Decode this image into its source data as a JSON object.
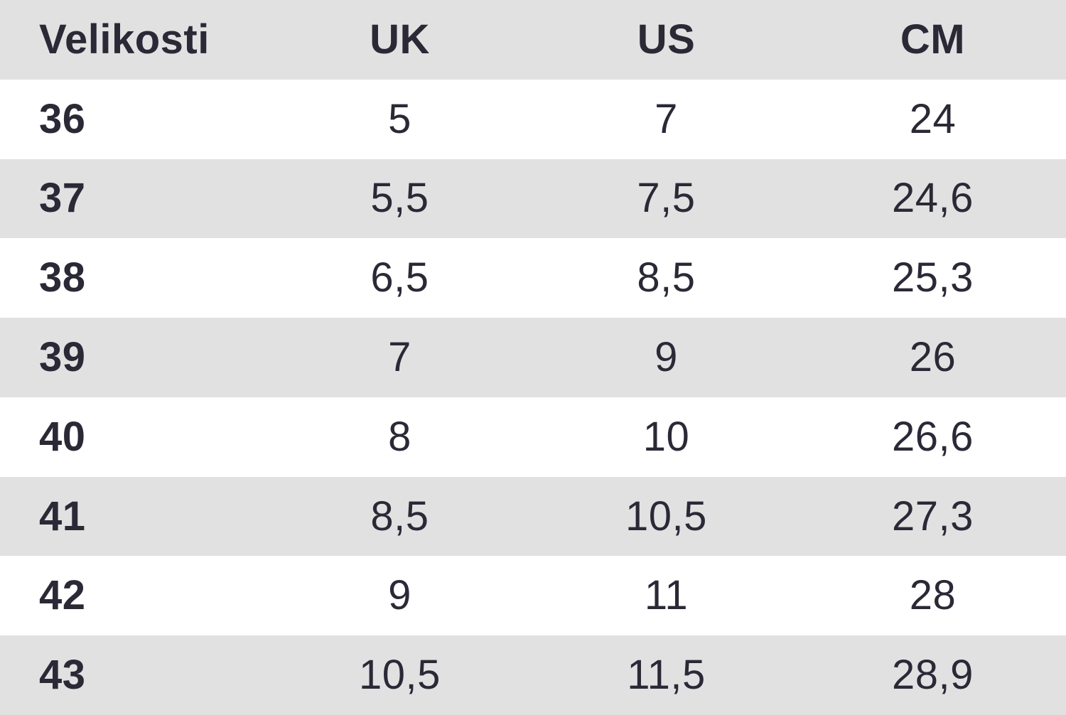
{
  "table": {
    "header": {
      "size_label": "Velikosti",
      "uk_label": "UK",
      "us_label": "US",
      "cm_label": "CM"
    },
    "rows": [
      {
        "size": "36",
        "uk": "5",
        "us": "7",
        "cm": "24"
      },
      {
        "size": "37",
        "uk": "5,5",
        "us": "7,5",
        "cm": "24,6"
      },
      {
        "size": "38",
        "uk": "6,5",
        "us": "8,5",
        "cm": "25,3"
      },
      {
        "size": "39",
        "uk": "7",
        "us": "9",
        "cm": "26"
      },
      {
        "size": "40",
        "uk": "8",
        "us": "10",
        "cm": "26,6"
      },
      {
        "size": "41",
        "uk": "8,5",
        "us": "10,5",
        "cm": "27,3"
      },
      {
        "size": "42",
        "uk": "9",
        "us": "11",
        "cm": "28"
      },
      {
        "size": "43",
        "uk": "10,5",
        "us": "11,5",
        "cm": "28,9"
      }
    ]
  },
  "chart_data": {
    "type": "table",
    "title": "",
    "columns": [
      "Velikosti",
      "UK",
      "US",
      "CM"
    ],
    "rows": [
      [
        "36",
        "5",
        "7",
        "24"
      ],
      [
        "37",
        "5,5",
        "7,5",
        "24,6"
      ],
      [
        "38",
        "6,5",
        "8,5",
        "25,3"
      ],
      [
        "39",
        "7",
        "9",
        "26"
      ],
      [
        "40",
        "8",
        "10",
        "26,6"
      ],
      [
        "41",
        "8,5",
        "10,5",
        "27,3"
      ],
      [
        "42",
        "9",
        "11",
        "28"
      ],
      [
        "43",
        "10,5",
        "11,5",
        "28,9"
      ]
    ],
    "layout": {
      "header_background": "#e2e1e2",
      "stripe_background": "#e2e1e2",
      "plain_background": "#ffffff",
      "first_column_align": "left",
      "value_columns_align": "center"
    }
  },
  "colors": {
    "stripe": "#e2e1e2",
    "row_white": "#ffffff",
    "text": "#2b2936"
  }
}
